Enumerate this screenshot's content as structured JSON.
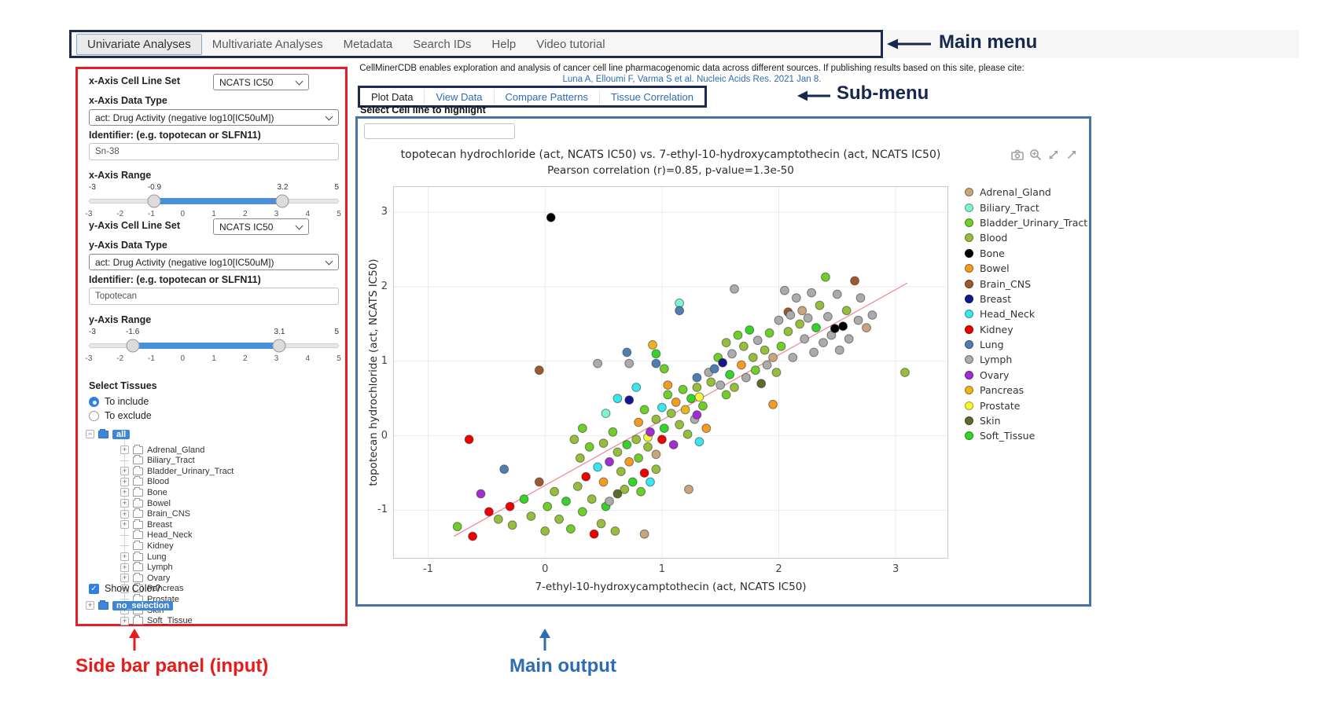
{
  "main_menu": {
    "items": [
      {
        "label": "Univariate Analyses",
        "active": true
      },
      {
        "label": "Multivariate Analyses",
        "active": false
      },
      {
        "label": "Metadata",
        "active": false
      },
      {
        "label": "Search IDs",
        "active": false
      },
      {
        "label": "Help",
        "active": false
      },
      {
        "label": "Video tutorial",
        "active": false
      }
    ]
  },
  "citation": {
    "line1": "CellMinerCDB enables exploration and analysis of cancer cell line pharmacogenomic data across different sources. If publishing results based on this site, please cite:",
    "link": "Luna A, Elloumi F, Varma S et al. Nucleic Acids Res. 2021 Jan 8."
  },
  "sub_menu": {
    "items": [
      {
        "label": "Plot Data",
        "active": true
      },
      {
        "label": "View Data",
        "active": false
      },
      {
        "label": "Compare Patterns",
        "active": false
      },
      {
        "label": "Tissue Correlation",
        "active": false
      }
    ]
  },
  "highlight": {
    "label": "Select Cell line to highlight",
    "value": ""
  },
  "sidebar": {
    "x_axis": {
      "cell_line_set_label": "x-Axis Cell Line Set",
      "cell_line_set_value": "NCATS IC50",
      "data_type_label": "x-Axis Data Type",
      "data_type_value": "act: Drug Activity (negative log10[IC50uM])",
      "identifier_label": "Identifier: (e.g. topotecan or SLFN11)",
      "identifier_value": "Sn-38",
      "range_label": "x-Axis Range",
      "slider": {
        "min": -3,
        "max": 5,
        "from": -0.9,
        "to": 3.2,
        "min_label": "-3",
        "max_label": "5",
        "from_label": "-0.9",
        "to_label": "3.2",
        "ticks": [
          "-3",
          "-2",
          "-1",
          "0",
          "1",
          "2",
          "3",
          "4",
          "5"
        ]
      }
    },
    "y_axis": {
      "cell_line_set_label": "y-Axis Cell Line Set",
      "cell_line_set_value": "NCATS IC50",
      "data_type_label": "y-Axis Data Type",
      "data_type_value": "act: Drug Activity (negative log10[IC50uM])",
      "identifier_label": "Identifier: (e.g. topotecan or SLFN11)",
      "identifier_value": "Topotecan",
      "range_label": "y-Axis Range",
      "slider": {
        "min": -3,
        "max": 5,
        "from": -1.6,
        "to": 3.1,
        "min_label": "-3",
        "max_label": "5",
        "from_label": "-1.6",
        "to_label": "3.1",
        "ticks": [
          "-3",
          "-2",
          "-1",
          "0",
          "1",
          "2",
          "3",
          "4",
          "5"
        ]
      }
    },
    "tissues": {
      "label": "Select Tissues",
      "include_label": "To include",
      "exclude_label": "To exclude",
      "include_selected": true,
      "root": "all",
      "items": [
        {
          "name": "Adrenal_Gland",
          "expandable": true
        },
        {
          "name": "Biliary_Tract",
          "expandable": false
        },
        {
          "name": "Bladder_Urinary_Tract",
          "expandable": true
        },
        {
          "name": "Blood",
          "expandable": true
        },
        {
          "name": "Bone",
          "expandable": true
        },
        {
          "name": "Bowel",
          "expandable": true
        },
        {
          "name": "Brain_CNS",
          "expandable": true
        },
        {
          "name": "Breast",
          "expandable": true
        },
        {
          "name": "Head_Neck",
          "expandable": false
        },
        {
          "name": "Kidney",
          "expandable": false
        },
        {
          "name": "Lung",
          "expandable": true
        },
        {
          "name": "Lymph",
          "expandable": true
        },
        {
          "name": "Ovary",
          "expandable": true
        },
        {
          "name": "Pancreas",
          "expandable": true
        },
        {
          "name": "Prostate",
          "expandable": false
        },
        {
          "name": "Skin",
          "expandable": true
        },
        {
          "name": "Soft_Tissue",
          "expandable": true
        }
      ],
      "show_color_label": "Show Color?",
      "show_color_checked": true,
      "selection_root": "no_selection"
    }
  },
  "modebar": {
    "icons": [
      "camera-icon",
      "zoom-in-icon",
      "expand-arrows-icon",
      "arrow-up-right-icon"
    ]
  },
  "annotations": {
    "main_menu": "Main menu",
    "sub_menu": "Sub-menu",
    "sidebar": "Side bar panel (input)",
    "main_output": "Main output"
  },
  "chart_data": {
    "type": "scatter",
    "title": "topotecan hydrochloride (act, NCATS IC50) vs. 7-ethyl-10-hydroxycamptothecin (act, NCATS IC50)",
    "subtitle": "Pearson correlation (r)=0.85, p-value=1.3e-50",
    "xlabel": "7-ethyl-10-hydroxycamptothecin (act, NCATS IC50)",
    "ylabel": "topotecan hydrochloride (act, NCATS IC50)",
    "xlim": [
      -1.3,
      3.45
    ],
    "ylim": [
      -1.65,
      3.35
    ],
    "xticks": [
      -1,
      0,
      1,
      2,
      3
    ],
    "yticks": [
      -1,
      0,
      1,
      2,
      3
    ],
    "grid": true,
    "legend_position": "right",
    "regression_line": {
      "x1": -0.78,
      "y1": -1.35,
      "x2": 3.1,
      "y2": 2.05,
      "color": "#ee8593"
    },
    "pearson_r": 0.85,
    "p_value": "1.3e-50",
    "tissues": [
      {
        "name": "Adrenal_Gland",
        "color": "#c8a57b"
      },
      {
        "name": "Biliary_Tract",
        "color": "#7ff3d3"
      },
      {
        "name": "Bladder_Urinary_Tract",
        "color": "#6fce28"
      },
      {
        "name": "Blood",
        "color": "#96be3c"
      },
      {
        "name": "Bone",
        "color": "#000000"
      },
      {
        "name": "Bowel",
        "color": "#f59b23"
      },
      {
        "name": "Brain_CNS",
        "color": "#9c5a2e"
      },
      {
        "name": "Breast",
        "color": "#13188c"
      },
      {
        "name": "Head_Neck",
        "color": "#39e5ee"
      },
      {
        "name": "Kidney",
        "color": "#f00000"
      },
      {
        "name": "Lung",
        "color": "#4e7fb0"
      },
      {
        "name": "Lymph",
        "color": "#ababab"
      },
      {
        "name": "Ovary",
        "color": "#9f2fd0"
      },
      {
        "name": "Pancreas",
        "color": "#e8b421"
      },
      {
        "name": "Prostate",
        "color": "#f7f73a"
      },
      {
        "name": "Skin",
        "color": "#5d6b2f"
      },
      {
        "name": "Soft_Tissue",
        "color": "#35d42a"
      }
    ],
    "points": [
      [
        0.05,
        2.93,
        4
      ],
      [
        -0.65,
        -0.05,
        9
      ],
      [
        -0.05,
        0.88,
        6
      ],
      [
        2.65,
        2.08,
        6
      ],
      [
        2.4,
        2.13,
        2
      ],
      [
        3.08,
        0.85,
        3
      ],
      [
        -0.75,
        -1.22,
        2
      ],
      [
        -0.62,
        -1.35,
        9
      ],
      [
        -0.55,
        -0.78,
        12
      ],
      [
        -0.48,
        -1.02,
        9
      ],
      [
        -0.4,
        -1.12,
        3
      ],
      [
        -0.35,
        -0.45,
        10
      ],
      [
        -0.3,
        -0.95,
        9
      ],
      [
        -0.28,
        -1.2,
        3
      ],
      [
        -0.18,
        -0.85,
        16
      ],
      [
        -0.12,
        -1.08,
        3
      ],
      [
        -0.05,
        -0.62,
        6
      ],
      [
        0,
        -1.28,
        3
      ],
      [
        0.02,
        -0.95,
        2
      ],
      [
        0.08,
        -0.75,
        3
      ],
      [
        0.12,
        -1.12,
        3
      ],
      [
        0.18,
        -0.88,
        16
      ],
      [
        0.22,
        -1.25,
        2
      ],
      [
        0.28,
        -0.68,
        3
      ],
      [
        0.32,
        -1.02,
        2
      ],
      [
        0.35,
        -0.55,
        9
      ],
      [
        0.4,
        -0.85,
        3
      ],
      [
        0.42,
        -1.32,
        9
      ],
      [
        0.48,
        -1.18,
        3
      ],
      [
        0.52,
        -0.95,
        16
      ],
      [
        0.55,
        -0.88,
        11
      ],
      [
        0.6,
        -1.28,
        3
      ],
      [
        0.62,
        -0.78,
        15
      ],
      [
        0.85,
        -1.32,
        0
      ],
      [
        1.23,
        -0.72,
        0
      ],
      [
        0.25,
        -0.05,
        3
      ],
      [
        0.3,
        -0.3,
        3
      ],
      [
        0.32,
        0.1,
        2
      ],
      [
        0.38,
        -0.15,
        2
      ],
      [
        0.45,
        -0.42,
        8
      ],
      [
        0.5,
        -0.1,
        3
      ],
      [
        0.5,
        -0.62,
        5
      ],
      [
        0.55,
        -0.35,
        12
      ],
      [
        0.58,
        0.05,
        2
      ],
      [
        0.62,
        -0.22,
        3
      ],
      [
        0.65,
        -0.48,
        3
      ],
      [
        0.68,
        -0.72,
        3
      ],
      [
        0.7,
        -0.12,
        16
      ],
      [
        0.72,
        -0.35,
        5
      ],
      [
        0.75,
        -0.62,
        16
      ],
      [
        0.78,
        -0.05,
        3
      ],
      [
        0.8,
        -0.3,
        2
      ],
      [
        0.82,
        -0.75,
        2
      ],
      [
        0.85,
        -0.5,
        9
      ],
      [
        0.88,
        -0.15,
        3
      ],
      [
        0.88,
        -0.02,
        14
      ],
      [
        0.9,
        -0.62,
        8
      ],
      [
        0.95,
        -0.45,
        3
      ],
      [
        0.95,
        -0.25,
        0
      ],
      [
        0.52,
        0.3,
        1
      ],
      [
        0.62,
        0.5,
        8
      ],
      [
        0.72,
        0.48,
        7
      ],
      [
        0.78,
        0.65,
        8
      ],
      [
        0.8,
        0.18,
        5
      ],
      [
        0.85,
        0.35,
        2
      ],
      [
        0.9,
        0.05,
        12
      ],
      [
        0.95,
        0.22,
        3
      ],
      [
        1,
        0.38,
        8
      ],
      [
        1,
        -0.05,
        9
      ],
      [
        1.02,
        0.1,
        16
      ],
      [
        1.02,
        0.9,
        2
      ],
      [
        1.05,
        0.55,
        2
      ],
      [
        1.05,
        0.68,
        5
      ],
      [
        1.08,
        0.3,
        3
      ],
      [
        1.1,
        -0.12,
        12
      ],
      [
        1.12,
        0.45,
        5
      ],
      [
        1.15,
        0.15,
        3
      ],
      [
        1.18,
        0.62,
        2
      ],
      [
        1.2,
        0.35,
        13
      ],
      [
        1.22,
        0.02,
        3
      ],
      [
        1.25,
        0.5,
        16
      ],
      [
        1.28,
        0.22,
        11
      ],
      [
        1.3,
        0.65,
        3
      ],
      [
        1.3,
        0.28,
        12
      ],
      [
        1.32,
        -0.08,
        8
      ],
      [
        1.32,
        0.52,
        14
      ],
      [
        1.35,
        0.4,
        2
      ],
      [
        1.38,
        0.1,
        5
      ],
      [
        0.45,
        0.97,
        11
      ],
      [
        0.7,
        1.12,
        10
      ],
      [
        0.72,
        0.97,
        11
      ],
      [
        0.92,
        1.22,
        13
      ],
      [
        0.95,
        0.97,
        10
      ],
      [
        0.95,
        1.1,
        16
      ],
      [
        1.15,
        1.78,
        1
      ],
      [
        1.15,
        1.68,
        10
      ],
      [
        1.3,
        0.78,
        10
      ],
      [
        1.4,
        0.85,
        11
      ],
      [
        1.42,
        0.72,
        3
      ],
      [
        1.45,
        0.9,
        10
      ],
      [
        1.48,
        1.05,
        2
      ],
      [
        1.5,
        0.68,
        11
      ],
      [
        1.52,
        0.98,
        7
      ],
      [
        1.55,
        1.25,
        3
      ],
      [
        1.55,
        0.55,
        2
      ],
      [
        1.58,
        0.82,
        16
      ],
      [
        1.6,
        1.1,
        11
      ],
      [
        1.62,
        0.65,
        3
      ],
      [
        1.62,
        1.97,
        11
      ],
      [
        1.65,
        1.35,
        2
      ],
      [
        1.68,
        0.95,
        5
      ],
      [
        1.7,
        1.2,
        3
      ],
      [
        1.72,
        0.78,
        11
      ],
      [
        1.75,
        1.42,
        16
      ],
      [
        1.78,
        1.05,
        3
      ],
      [
        1.8,
        0.88,
        2
      ],
      [
        1.82,
        1.28,
        11
      ],
      [
        1.85,
        0.7,
        15
      ],
      [
        1.88,
        1.15,
        3
      ],
      [
        1.9,
        0.95,
        11
      ],
      [
        1.92,
        1.38,
        2
      ],
      [
        1.95,
        0.42,
        5
      ],
      [
        1.95,
        1.05,
        0
      ],
      [
        1.98,
        0.85,
        3
      ],
      [
        2,
        1.55,
        11
      ],
      [
        2.02,
        1.2,
        2
      ],
      [
        2.05,
        1.95,
        11
      ],
      [
        2.08,
        1.4,
        3
      ],
      [
        2.08,
        1.66,
        6
      ],
      [
        2.1,
        1.62,
        11
      ],
      [
        2.12,
        1.05,
        11
      ],
      [
        2.15,
        1.85,
        11
      ],
      [
        2.18,
        1.5,
        3
      ],
      [
        2.2,
        1.68,
        0
      ],
      [
        2.22,
        1.3,
        11
      ],
      [
        2.25,
        1.58,
        11
      ],
      [
        2.28,
        1.92,
        11
      ],
      [
        2.3,
        1.12,
        11
      ],
      [
        2.32,
        1.45,
        16
      ],
      [
        2.35,
        1.75,
        3
      ],
      [
        2.38,
        1.25,
        11
      ],
      [
        2.42,
        1.6,
        11
      ],
      [
        2.45,
        1.35,
        11
      ],
      [
        2.48,
        1.44,
        4
      ],
      [
        2.55,
        1.47,
        4
      ],
      [
        2.5,
        1.9,
        11
      ],
      [
        2.52,
        1.15,
        11
      ],
      [
        2.58,
        1.68,
        3
      ],
      [
        2.6,
        1.3,
        11
      ],
      [
        2.68,
        1.55,
        11
      ],
      [
        2.7,
        1.85,
        11
      ],
      [
        2.75,
        1.45,
        0
      ],
      [
        2.8,
        1.62,
        11
      ]
    ]
  }
}
